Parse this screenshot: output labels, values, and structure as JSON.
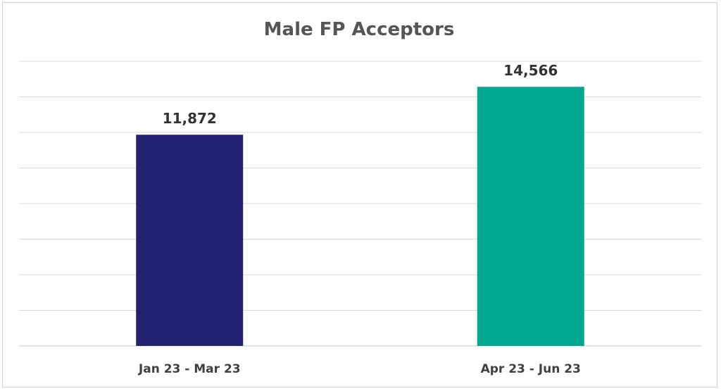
{
  "chart_data": {
    "type": "bar",
    "title": "Male FP Acceptors",
    "xlabel": "",
    "ylabel": "",
    "categories": [
      "Jan 23 - Mar 23",
      "Apr 23 - Jun 23"
    ],
    "values": [
      11872,
      14566
    ],
    "value_labels": [
      "11,872",
      "14,566"
    ],
    "colors": [
      "#232272",
      "#00A88F"
    ],
    "ylim": [
      0,
      16000
    ],
    "grid": true,
    "legend": "none"
  }
}
